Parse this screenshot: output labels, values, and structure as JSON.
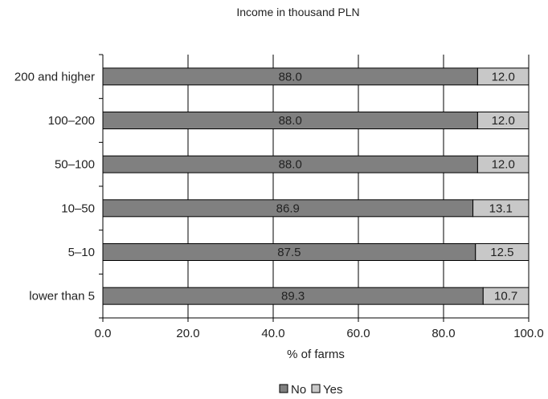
{
  "chart_data": {
    "type": "bar",
    "orientation": "horizontal",
    "stacked": true,
    "title": "Income in thousand PLN",
    "xlabel": "% of farms",
    "ylabel": "",
    "xlim": [
      0,
      100
    ],
    "x_ticks": [
      "0.0",
      "20.0",
      "40.0",
      "60.0",
      "80.0",
      "100.0"
    ],
    "grid": "vertical",
    "legend_position": "bottom",
    "categories": [
      "200 and higher",
      "100–200",
      "50–100",
      "10–50",
      "5–10",
      "lower than 5"
    ],
    "series": [
      {
        "name": "No",
        "color": "#808080",
        "values": [
          88.0,
          88.0,
          88.0,
          86.9,
          87.5,
          89.3
        ],
        "labels": [
          "88.0",
          "88.0",
          "88.0",
          "86.9",
          "87.5",
          "89.3"
        ]
      },
      {
        "name": "Yes",
        "color": "#c8c8c8",
        "values": [
          12.0,
          12.0,
          12.0,
          13.1,
          12.5,
          10.7
        ],
        "labels": [
          "12.0",
          "12.0",
          "12.0",
          "13.1",
          "12.5",
          "10.7"
        ]
      }
    ]
  }
}
